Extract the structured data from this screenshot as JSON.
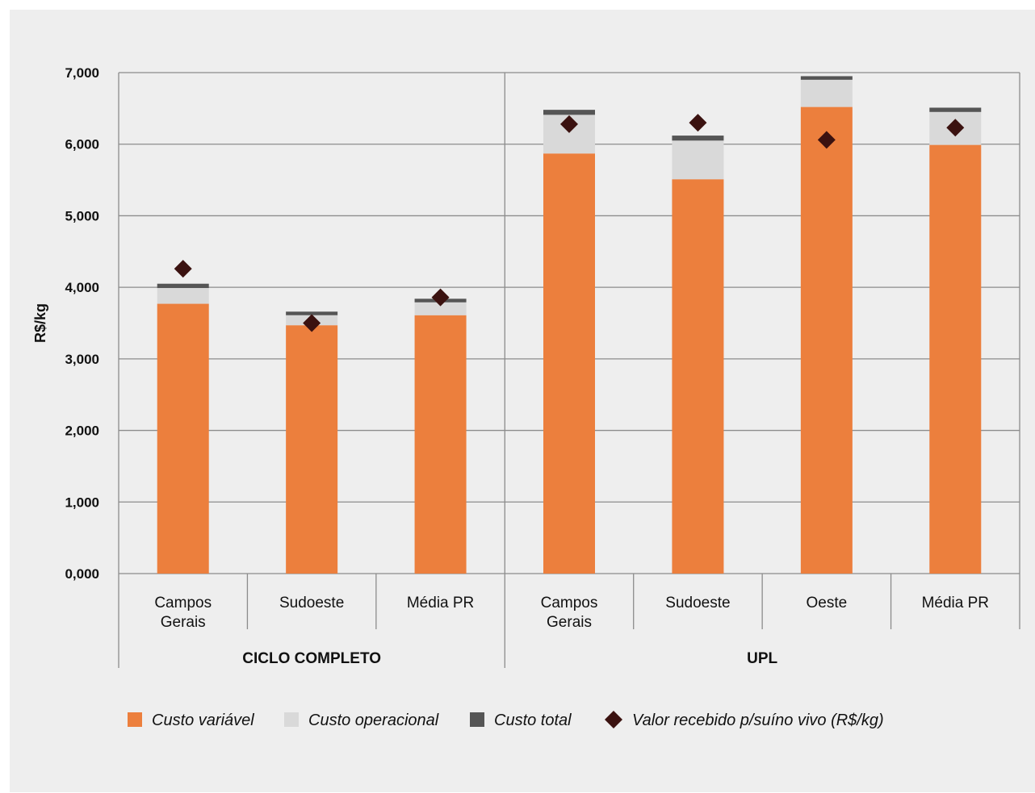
{
  "chart_data": {
    "type": "bar",
    "stacked": true,
    "ylabel": "R$/kg",
    "xlabel": "",
    "ylim": [
      0,
      7
    ],
    "yticks": [
      "0,000",
      "1,000",
      "2,000",
      "3,000",
      "4,000",
      "5,000",
      "6,000",
      "7,000"
    ],
    "grid": true,
    "legend_position": "bottom",
    "groups": [
      {
        "name": "CICLO COMPLETO",
        "categories": [
          {
            "label": [
              "Campos",
              "Gerais"
            ],
            "variavel": 3.77,
            "operacional": 0.22,
            "total": 0.06,
            "valor": 4.26
          },
          {
            "label": [
              "Sudoeste"
            ],
            "variavel": 3.47,
            "operacional": 0.14,
            "total": 0.05,
            "valor": 3.5
          },
          {
            "label": [
              "Média PR"
            ],
            "variavel": 3.61,
            "operacional": 0.18,
            "total": 0.05,
            "valor": 3.86
          }
        ]
      },
      {
        "name": "UPL",
        "categories": [
          {
            "label": [
              "Campos",
              "Gerais"
            ],
            "variavel": 5.87,
            "operacional": 0.54,
            "total": 0.07,
            "valor": 6.28
          },
          {
            "label": [
              "Sudoeste"
            ],
            "variavel": 5.51,
            "operacional": 0.54,
            "total": 0.07,
            "valor": 6.3
          },
          {
            "label": [
              "Oeste"
            ],
            "variavel": 6.52,
            "operacional": 0.38,
            "total": 0.05,
            "valor": 6.06
          },
          {
            "label": [
              "Média PR"
            ],
            "variavel": 5.99,
            "operacional": 0.46,
            "total": 0.06,
            "valor": 6.23
          }
        ]
      }
    ],
    "legend": [
      {
        "name": "Custo variável",
        "kind": "bar",
        "color": "#ec7f3d"
      },
      {
        "name": "Custo operacional",
        "kind": "bar",
        "color": "#d9d9d9"
      },
      {
        "name": "Custo total",
        "kind": "bar",
        "color": "#555555"
      },
      {
        "name": "Valor recebido p/suíno vivo (R$/kg)",
        "kind": "diamond",
        "color": "#3b1210"
      }
    ]
  }
}
